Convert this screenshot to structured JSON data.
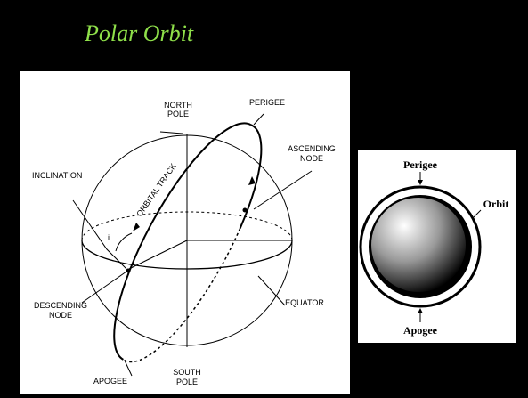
{
  "title": "Polar Orbit",
  "left_diagram": {
    "north_pole": [
      "NORTH",
      "POLE"
    ],
    "perigee": "PERIGEE",
    "ascending_node": [
      "ASCENDING",
      "NODE"
    ],
    "inclination": "INCLINATION",
    "orbital_track": "ORBITAL TRACK",
    "inclination_symbol": "i",
    "descending_node": [
      "DESCENDING",
      "NODE"
    ],
    "equator": "EQUATOR",
    "apogee": "APOGEE",
    "south_pole": [
      "SOUTH",
      "POLE"
    ]
  },
  "right_diagram": {
    "perigee": "Perigee",
    "orbit": "Orbit",
    "apogee": "Apogee"
  }
}
